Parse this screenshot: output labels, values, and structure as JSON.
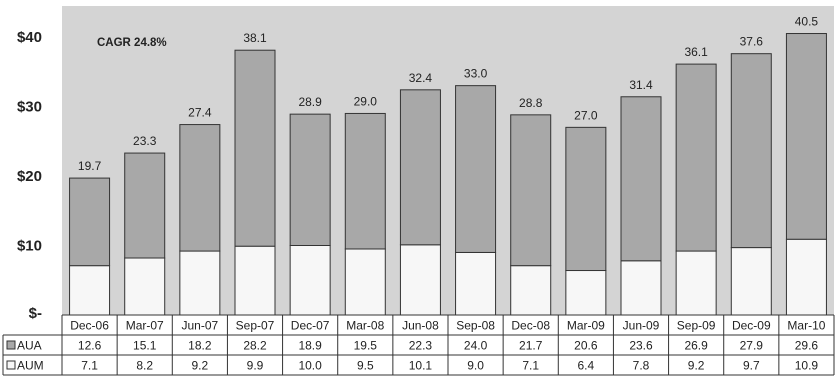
{
  "chart_data": {
    "type": "bar",
    "stacked": true,
    "categories": [
      "Dec-06",
      "Mar-07",
      "Jun-07",
      "Sep-07",
      "Dec-07",
      "Mar-08",
      "Jun-08",
      "Sep-08",
      "Dec-08",
      "Mar-09",
      "Jun-09",
      "Sep-09",
      "Dec-09",
      "Mar-10"
    ],
    "series": [
      {
        "name": "AUM",
        "color": "#f7f7f7",
        "values": [
          7.1,
          8.2,
          9.2,
          9.9,
          10.0,
          9.5,
          10.1,
          9.0,
          7.1,
          6.4,
          7.8,
          9.2,
          9.7,
          10.9
        ]
      },
      {
        "name": "AUA",
        "color": "#a8a8a8",
        "values": [
          12.6,
          15.1,
          18.2,
          28.2,
          18.9,
          19.5,
          22.3,
          24.0,
          21.7,
          20.6,
          23.6,
          26.9,
          27.9,
          29.6
        ]
      }
    ],
    "totals": [
      "19.7",
      "23.3",
      "27.4",
      "38.1",
      "28.9",
      "29.0",
      "32.4",
      "33.0",
      "28.8",
      "27.0",
      "31.4",
      "36.1",
      "37.6",
      "40.5"
    ],
    "table_values": {
      "AUA": [
        "12.6",
        "15.1",
        "18.2",
        "28.2",
        "18.9",
        "19.5",
        "22.3",
        "24.0",
        "21.7",
        "20.6",
        "23.6",
        "26.9",
        "27.9",
        "29.6"
      ],
      "AUM": [
        "7.1",
        "8.2",
        "9.2",
        "9.9",
        "10.0",
        "9.5",
        "10.1",
        "9.0",
        "7.1",
        "6.4",
        "7.8",
        "9.2",
        "9.7",
        "10.9"
      ]
    },
    "yticks": [
      0,
      10,
      20,
      30,
      40
    ],
    "ytick_labels": [
      "$-",
      "$10",
      "$20",
      "$30",
      "$40"
    ],
    "ylim": [
      0,
      44
    ],
    "annotation": "CAGR 24.8%",
    "plot_background": "#d4d4d4",
    "grid": false,
    "legend": "data-table-rows"
  }
}
